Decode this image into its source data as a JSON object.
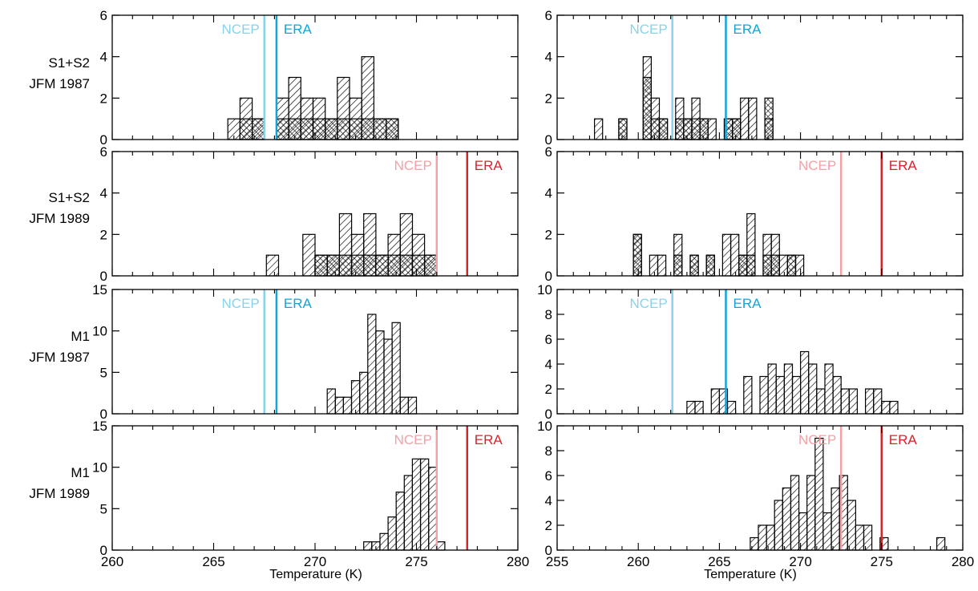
{
  "colors": {
    "ncep_cold": "#88d3ea",
    "era_cold": "#0fa5d8",
    "ncep_warm": "#f3a0a6",
    "era_warm": "#d8232a",
    "bars": "#000000"
  },
  "row_labels": [
    {
      "line1": "S1+S2",
      "line2": "JFM 1987"
    },
    {
      "line1": "S1+S2",
      "line2": "JFM 1989"
    },
    {
      "line1": "M1",
      "line2": "JFM 1987"
    },
    {
      "line1": "M1",
      "line2": "JFM 1989"
    }
  ],
  "xlabel": "Temperature (K)",
  "chart_data": [
    {
      "type": "bar",
      "subtype": "histogram",
      "row": 0,
      "col": 0,
      "xlim": [
        260,
        280
      ],
      "ylim": [
        0,
        6
      ],
      "xticks": [
        260,
        265,
        270,
        275,
        280
      ],
      "yticks": [
        0,
        2,
        4,
        6
      ],
      "bin_width": 0.6,
      "bin_start": 265.7,
      "series": [
        {
          "pattern": "diagonal",
          "values": [
            1,
            2,
            1,
            0,
            2,
            3,
            2,
            2,
            1,
            3,
            2,
            4,
            1,
            1
          ]
        },
        {
          "pattern": "crosshatch",
          "values": [
            0,
            1,
            1,
            0,
            1,
            1,
            1,
            1,
            1,
            1,
            1,
            1,
            1,
            1
          ]
        }
      ],
      "reference_lines": [
        {
          "label": "NCEP",
          "x": 267.5,
          "color_key": "ncep_cold"
        },
        {
          "label": "ERA",
          "x": 268.1,
          "color_key": "era_cold"
        }
      ]
    },
    {
      "type": "bar",
      "subtype": "histogram",
      "row": 0,
      "col": 1,
      "xlim": [
        255,
        280
      ],
      "ylim": [
        0,
        6
      ],
      "xticks": [
        255,
        260,
        265,
        270,
        275,
        280
      ],
      "yticks": [
        0,
        2,
        4,
        6
      ],
      "bin_width": 0.5,
      "bin_start": 257.3,
      "series": [
        {
          "pattern": "diagonal",
          "values": [
            1,
            0,
            0,
            1,
            0,
            0,
            4,
            2,
            1,
            0,
            2,
            1,
            2,
            1,
            1,
            0,
            1,
            1,
            2,
            2,
            0,
            1
          ]
        },
        {
          "pattern": "crosshatch",
          "values": [
            0,
            0,
            0,
            1,
            0,
            0,
            3,
            1,
            1,
            0,
            1,
            1,
            1,
            1,
            0,
            0,
            1,
            1,
            0,
            0,
            0,
            2
          ]
        }
      ],
      "reference_lines": [
        {
          "label": "NCEP",
          "x": 262.1,
          "color_key": "ncep_cold"
        },
        {
          "label": "ERA",
          "x": 265.4,
          "color_key": "era_cold"
        }
      ]
    },
    {
      "type": "bar",
      "subtype": "histogram",
      "row": 1,
      "col": 0,
      "xlim": [
        260,
        280
      ],
      "ylim": [
        0,
        6
      ],
      "xticks": [
        260,
        265,
        270,
        275,
        280
      ],
      "yticks": [
        0,
        2,
        4,
        6
      ],
      "bin_width": 0.6,
      "bin_start": 267.6,
      "series": [
        {
          "pattern": "diagonal",
          "values": [
            1,
            0,
            0,
            2,
            1,
            1,
            3,
            2,
            3,
            1,
            2,
            3,
            2,
            1
          ]
        },
        {
          "pattern": "crosshatch",
          "values": [
            0,
            0,
            0,
            0,
            1,
            1,
            1,
            1,
            1,
            1,
            1,
            1,
            1,
            1
          ]
        }
      ],
      "reference_lines": [
        {
          "label": "NCEP",
          "x": 276.0,
          "color_key": "ncep_warm"
        },
        {
          "label": "ERA",
          "x": 277.5,
          "color_key": "era_warm"
        }
      ]
    },
    {
      "type": "bar",
      "subtype": "histogram",
      "row": 1,
      "col": 1,
      "xlim": [
        255,
        280
      ],
      "ylim": [
        0,
        6
      ],
      "xticks": [
        255,
        260,
        265,
        270,
        275,
        280
      ],
      "yticks": [
        0,
        2,
        4,
        6
      ],
      "bin_width": 0.5,
      "bin_start": 259.7,
      "series": [
        {
          "pattern": "diagonal",
          "values": [
            2,
            0,
            1,
            1,
            0,
            2,
            0,
            1,
            0,
            1,
            0,
            2,
            2,
            1,
            3,
            0,
            2,
            2,
            1,
            1,
            1
          ]
        },
        {
          "pattern": "crosshatch",
          "values": [
            2,
            0,
            0,
            0,
            0,
            1,
            0,
            1,
            0,
            1,
            0,
            0,
            0,
            1,
            1,
            0,
            1,
            1,
            0,
            1,
            0
          ]
        }
      ],
      "reference_lines": [
        {
          "label": "NCEP",
          "x": 272.5,
          "color_key": "ncep_warm"
        },
        {
          "label": "ERA",
          "x": 275.0,
          "color_key": "era_warm"
        }
      ]
    },
    {
      "type": "bar",
      "subtype": "histogram",
      "row": 2,
      "col": 0,
      "xlim": [
        260,
        280
      ],
      "ylim": [
        0,
        15
      ],
      "xticks": [
        260,
        265,
        270,
        275,
        280
      ],
      "yticks": [
        0,
        5,
        10,
        15
      ],
      "bin_width": 0.4,
      "bin_start": 270.6,
      "series": [
        {
          "pattern": "diagonal",
          "values": [
            3,
            2,
            2,
            4,
            5,
            12,
            10,
            9,
            11,
            2,
            2
          ]
        }
      ],
      "reference_lines": [
        {
          "label": "NCEP",
          "x": 267.5,
          "color_key": "ncep_cold"
        },
        {
          "label": "ERA",
          "x": 268.1,
          "color_key": "era_cold"
        }
      ]
    },
    {
      "type": "bar",
      "subtype": "histogram",
      "row": 2,
      "col": 1,
      "xlim": [
        255,
        280
      ],
      "ylim": [
        0,
        10
      ],
      "xticks": [
        255,
        260,
        265,
        270,
        275,
        280
      ],
      "yticks": [
        0,
        2,
        4,
        6,
        8,
        10
      ],
      "bin_width": 0.5,
      "bin_start": 263.0,
      "series": [
        {
          "pattern": "diagonal",
          "values": [
            1,
            1,
            0,
            2,
            2,
            1,
            0,
            3,
            0,
            3,
            4,
            3,
            4,
            3,
            5,
            4,
            2,
            4,
            3,
            2,
            2,
            0,
            2,
            2,
            1,
            1
          ]
        }
      ],
      "reference_lines": [
        {
          "label": "NCEP",
          "x": 262.1,
          "color_key": "ncep_cold"
        },
        {
          "label": "ERA",
          "x": 265.4,
          "color_key": "era_cold"
        }
      ]
    },
    {
      "type": "bar",
      "subtype": "histogram",
      "row": 3,
      "col": 0,
      "xlim": [
        260,
        280
      ],
      "ylim": [
        0,
        15
      ],
      "xticks": [
        260,
        265,
        270,
        275,
        280
      ],
      "yticks": [
        0,
        5,
        10,
        15
      ],
      "bin_width": 0.4,
      "bin_start": 272.4,
      "series": [
        {
          "pattern": "diagonal",
          "values": [
            1,
            1,
            2,
            4,
            7,
            9,
            11,
            11,
            10,
            1
          ]
        }
      ],
      "reference_lines": [
        {
          "label": "NCEP",
          "x": 276.0,
          "color_key": "ncep_warm"
        },
        {
          "label": "ERA",
          "x": 277.5,
          "color_key": "era_warm"
        }
      ]
    },
    {
      "type": "bar",
      "subtype": "histogram",
      "row": 3,
      "col": 1,
      "xlim": [
        255,
        280
      ],
      "ylim": [
        0,
        10
      ],
      "xticks": [
        255,
        260,
        265,
        270,
        275,
        280
      ],
      "yticks": [
        0,
        2,
        4,
        6,
        8,
        10
      ],
      "bin_width": 0.5,
      "bin_start": 266.9,
      "series": [
        {
          "pattern": "diagonal",
          "values": [
            1,
            2,
            2,
            4,
            5,
            6,
            3,
            6,
            9,
            3,
            5,
            6,
            4,
            2,
            2,
            0,
            1,
            0,
            0,
            0,
            0,
            0,
            0,
            1
          ]
        }
      ],
      "reference_lines": [
        {
          "label": "NCEP",
          "x": 272.5,
          "color_key": "ncep_warm"
        },
        {
          "label": "ERA",
          "x": 275.0,
          "color_key": "era_warm"
        }
      ]
    }
  ]
}
